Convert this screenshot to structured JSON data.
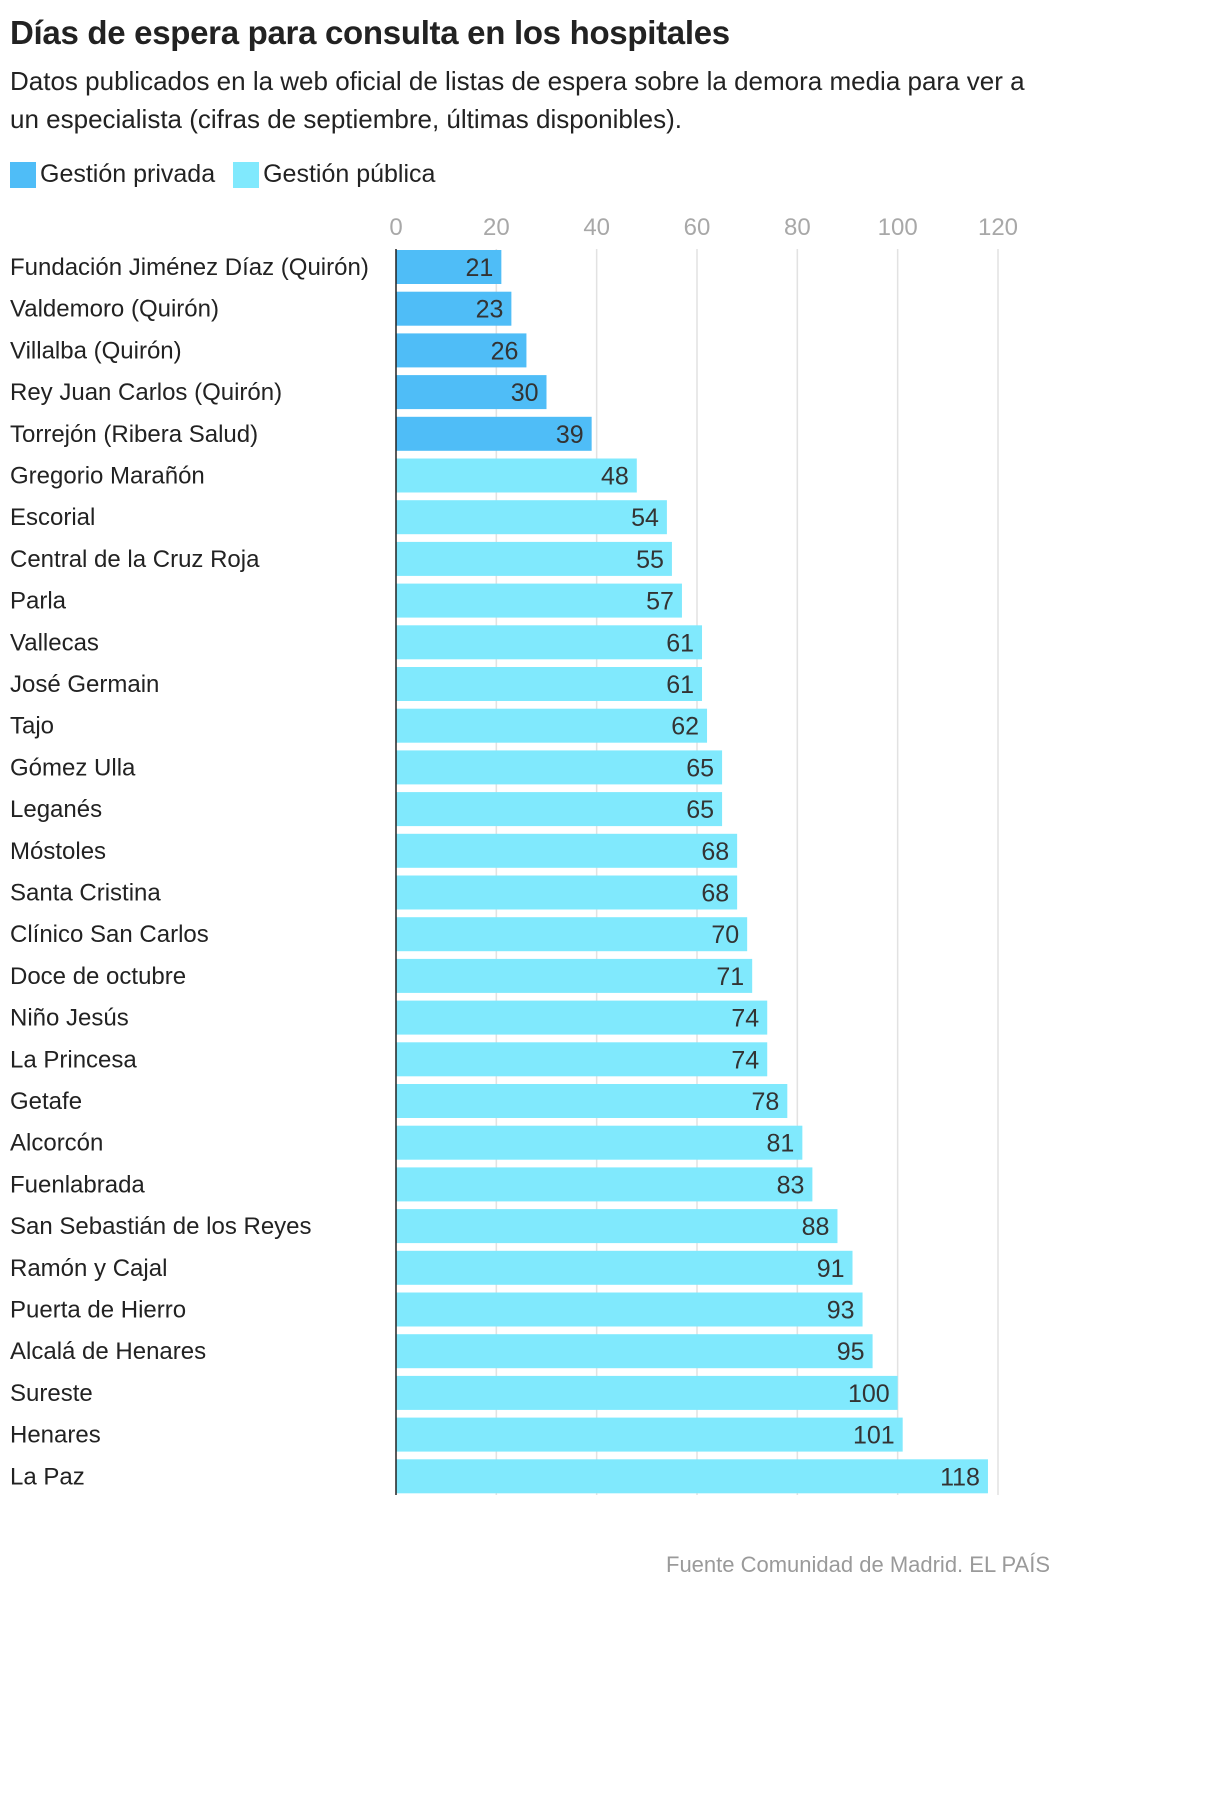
{
  "title": "Días de espera para consulta en los hospitales",
  "subtitle": "Datos publicados en la web oficial de listas de espera sobre la demora media para ver a un especialista (cifras de septiembre, últimas disponibles).",
  "source": "Fuente Comunidad de Madrid. EL PAÍS",
  "legend": [
    {
      "label": "Gestión privada",
      "color": "#4fbdf7"
    },
    {
      "label": "Gestión pública",
      "color": "#80e9fd"
    }
  ],
  "chart_data": {
    "type": "bar",
    "orientation": "horizontal",
    "xlim": [
      0,
      120
    ],
    "ticks": [
      0,
      20,
      40,
      60,
      80,
      100,
      120
    ],
    "grid": true,
    "legend_position": "top-left",
    "series": [
      {
        "name": "Gestión privada",
        "color": "#4fbdf7"
      },
      {
        "name": "Gestión pública",
        "color": "#80e9fd"
      }
    ],
    "categories": [
      "Fundación Jiménez Díaz (Quirón)",
      "Valdemoro (Quirón)",
      "Villalba (Quirón)",
      "Rey Juan Carlos (Quirón)",
      "Torrejón (Ribera Salud)",
      "Gregorio Marañón",
      "Escorial",
      "Central de la Cruz Roja",
      "Parla",
      "Vallecas",
      "José Germain",
      "Tajo",
      "Gómez Ulla",
      "Leganés",
      "Móstoles",
      "Santa Cristina",
      "Clínico San Carlos",
      "Doce de octubre",
      "Niño Jesús",
      "La Princesa",
      "Getafe",
      "Alcorcón",
      "Fuenlabrada",
      "San Sebastián de los Reyes",
      "Ramón y Cajal",
      "Puerta de Hierro",
      "Alcalá de Henares",
      "Sureste",
      "Henares",
      "La Paz"
    ],
    "values": [
      21,
      23,
      26,
      30,
      39,
      48,
      54,
      55,
      57,
      61,
      61,
      62,
      65,
      65,
      68,
      68,
      70,
      71,
      74,
      74,
      78,
      81,
      83,
      88,
      91,
      93,
      95,
      100,
      101,
      118
    ],
    "groups": [
      "Gestión privada",
      "Gestión privada",
      "Gestión privada",
      "Gestión privada",
      "Gestión privada",
      "Gestión pública",
      "Gestión pública",
      "Gestión pública",
      "Gestión pública",
      "Gestión pública",
      "Gestión pública",
      "Gestión pública",
      "Gestión pública",
      "Gestión pública",
      "Gestión pública",
      "Gestión pública",
      "Gestión pública",
      "Gestión pública",
      "Gestión pública",
      "Gestión pública",
      "Gestión pública",
      "Gestión pública",
      "Gestión pública",
      "Gestión pública",
      "Gestión pública",
      "Gestión pública",
      "Gestión pública",
      "Gestión pública",
      "Gestión pública",
      "Gestión pública"
    ]
  }
}
